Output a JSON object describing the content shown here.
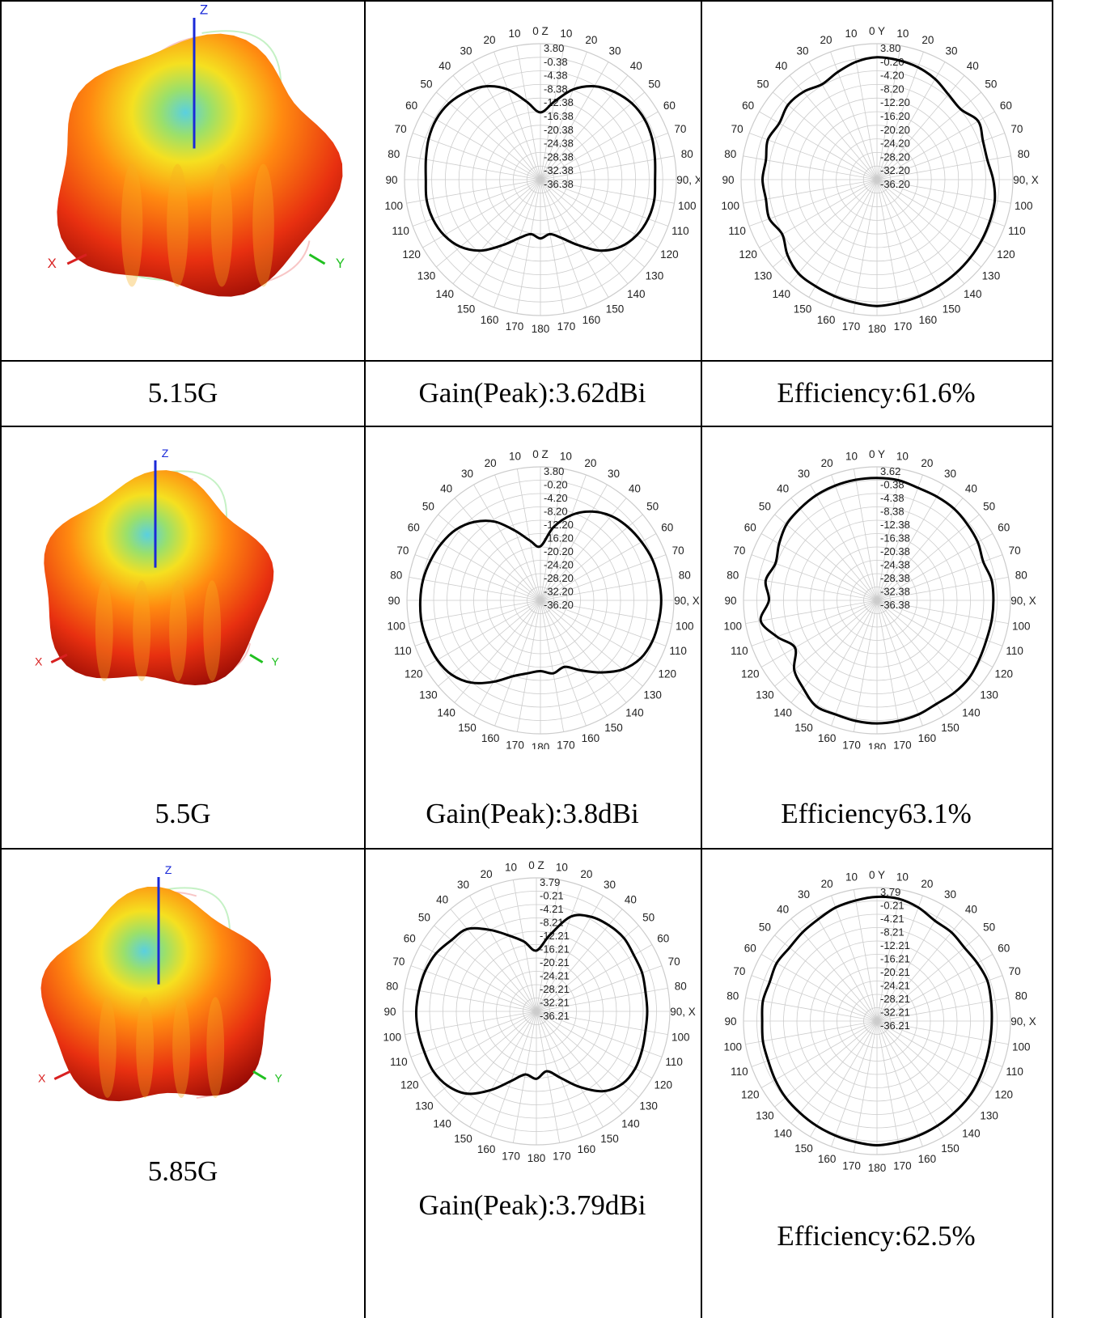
{
  "chart_data": {
    "type": "polar",
    "title": "",
    "angle_tick_labels": [
      "0",
      "10",
      "20",
      "30",
      "40",
      "50",
      "60",
      "70",
      "80",
      "90",
      "100",
      "110",
      "120",
      "130",
      "140",
      "150",
      "160",
      "170",
      "180",
      "170",
      "160",
      "150",
      "140",
      "130",
      "120",
      "110",
      "100",
      "90",
      "80",
      "70",
      "60",
      "50",
      "40",
      "30",
      "20",
      "10"
    ],
    "angle_tick_labels_signed": [
      "0",
      "10",
      "20",
      "30",
      "40",
      "50",
      "60",
      "70",
      "80",
      "90",
      "100",
      "110",
      "120",
      "130",
      "140",
      "150",
      "160",
      "170",
      "180",
      "-170",
      "-160",
      "-150",
      "-140",
      "-130",
      "-120",
      "-110",
      "-100",
      "-90",
      "-80",
      "-70",
      "-60",
      "-50",
      "-40",
      "-30",
      "-20",
      "-10"
    ],
    "rows": [
      {
        "frequency": "5.15G",
        "gain_text": "Gain(Peak):3.62dBi",
        "efficiency_text": "Efficiency:61.6%",
        "plots": [
          {
            "plane": "XZ",
            "axis_labels": {
              "top": "Z",
              "right": "X"
            },
            "radial_ticks": [
              "3.80",
              "-0.38",
              "-4.38",
              "-8.38",
              "-12.38",
              "-16.38",
              "-20.38",
              "-24.38",
              "-28.38",
              "-32.38",
              "-36.38"
            ],
            "range_db": [
              -36.38,
              3.8
            ],
            "gain_db": [
              -16.5,
              -13,
              -8,
              -4.5,
              -2.5,
              -1.2,
              -0.8,
              -1.2,
              -2,
              -2.5,
              -2.2,
              -2.5,
              -3.5,
              -5.5,
              -9,
              -14,
              -18,
              -20,
              -19,
              -20,
              -18,
              -14,
              -9,
              -5.5,
              -3.5,
              -2.5,
              -2.2,
              -2.5,
              -2,
              -1.2,
              -0.8,
              -1.2,
              -2.5,
              -4.5,
              -8,
              -13
            ]
          },
          {
            "plane": "YZ",
            "axis_labels": {
              "top": "Y",
              "right": "X"
            },
            "radial_ticks": [
              "3.80",
              "-0.20",
              "-4.20",
              "-8.20",
              "-12.20",
              "-16.20",
              "-20.20",
              "-24.20",
              "-28.20",
              "-32.20",
              "-36.20"
            ],
            "range_db": [
              -36.2,
              3.8
            ],
            "gain_db": [
              -0.2,
              -0.5,
              -1,
              -2,
              -3.5,
              -4,
              -1.8,
              -3,
              -3.2,
              -2,
              -1,
              -0.8,
              -0.6,
              -0.4,
              -0.2,
              0,
              0.3,
              0.6,
              1,
              0.6,
              0.3,
              0,
              -0.2,
              -1.8,
              -4,
              -2.5,
              -3,
              -2.5,
              -3,
              -2,
              -3,
              -2,
              -2.5,
              -3.8,
              -2.5,
              -1
            ]
          }
        ]
      },
      {
        "frequency": "5.5G",
        "gain_text": "Gain(Peak):3.8dBi",
        "efficiency_text": "Efficiency63.1%",
        "plots": [
          {
            "plane": "XZ",
            "axis_labels": {
              "top": "Z",
              "right": "X"
            },
            "radial_ticks": [
              "3.80",
              "-0.20",
              "-4.20",
              "-8.20",
              "-12.20",
              "-16.20",
              "-20.20",
              "-24.20",
              "-28.20",
              "-32.20",
              "-36.20"
            ],
            "range_db": [
              -36.2,
              3.8
            ],
            "gain_db": [
              -20,
              -14,
              -9,
              -5.5,
              -3.2,
              -2,
              -1.2,
              -0.5,
              -0.2,
              0,
              -0.2,
              -0.5,
              -1.5,
              -4,
              -8,
              -12,
              -15,
              -14,
              -15,
              -14,
              -12,
              -8,
              -4,
              -1.5,
              -0.5,
              -0.2,
              0,
              -0.2,
              -0.5,
              -1.2,
              -2,
              -3.2,
              -5.5,
              -9,
              -14,
              -18
            ]
          },
          {
            "plane": "YZ",
            "axis_labels": {
              "top": "Y",
              "right": "X"
            },
            "radial_ticks": [
              "3.62",
              "-0.38",
              "-4.38",
              "-8.38",
              "-12.38",
              "-16.38",
              "-20.38",
              "-24.38",
              "-28.38",
              "-32.38",
              "-36.38"
            ],
            "range_db": [
              -36.38,
              3.62
            ],
            "gain_db": [
              0.3,
              0.2,
              -0.5,
              -0.5,
              -0.5,
              -1,
              -1.5,
              -2.5,
              -1.5,
              -1.5,
              -1.5,
              -1.5,
              -1,
              -0.3,
              -0.3,
              -0.6,
              0,
              0.3,
              0.5,
              0.3,
              0,
              0.2,
              -2,
              -4,
              -8,
              -4.5,
              -1,
              -4,
              -2.5,
              -4,
              -2.5,
              -1,
              -0.5,
              0,
              0.2,
              0.3
            ]
          }
        ]
      },
      {
        "frequency": "5.85G",
        "gain_text": "Gain(Peak):3.79dBi",
        "efficiency_text": "Efficiency:62.5%",
        "plots": [
          {
            "plane": "XZ",
            "axis_labels": {
              "top": "Z",
              "right": "X"
            },
            "radial_ticks": [
              "3.79",
              "-0.21",
              "-4.21",
              "-8.21",
              "-12.21",
              "-16.21",
              "-20.21",
              "-24.21",
              "-28.21",
              "-32.21",
              "-36.21"
            ],
            "range_db": [
              -36.21,
              3.79
            ],
            "gain_db": [
              -18,
              -13,
              -6,
              -3.5,
              -2.5,
              -2,
              -2.5,
              -2.5,
              -3,
              -3,
              -3,
              -2.5,
              -2,
              -2.5,
              -5,
              -10,
              -15,
              -18,
              -16,
              -17,
              -14,
              -9,
              -4,
              -1.5,
              -0.5,
              -0.5,
              -0.3,
              -0.2,
              -0.5,
              -0.8,
              -1.5,
              -3,
              -4,
              -8,
              -12,
              -15
            ]
          },
          {
            "plane": "YZ",
            "axis_labels": {
              "top": "Y",
              "right": "X"
            },
            "radial_ticks": [
              "3.79",
              "-0.21",
              "-4.21",
              "-8.21",
              "-12.21",
              "-16.21",
              "-20.21",
              "-24.21",
              "-28.21",
              "-32.21",
              "-36.21"
            ],
            "range_db": [
              -36.21,
              3.79
            ],
            "gain_db": [
              1,
              1,
              0,
              -1.5,
              -1.5,
              -2,
              -1.5,
              -1,
              -1.5,
              -1.8,
              -1.8,
              -1.5,
              -1,
              -0.5,
              -0.3,
              0,
              0.3,
              0.6,
              1,
              0.6,
              0.3,
              0,
              -0.3,
              -0.5,
              -1,
              -1.5,
              -1.5,
              -1.8,
              -1.5,
              -2,
              -1.5,
              -2,
              -1.5,
              -1,
              0,
              0.5
            ]
          }
        ]
      }
    ]
  }
}
